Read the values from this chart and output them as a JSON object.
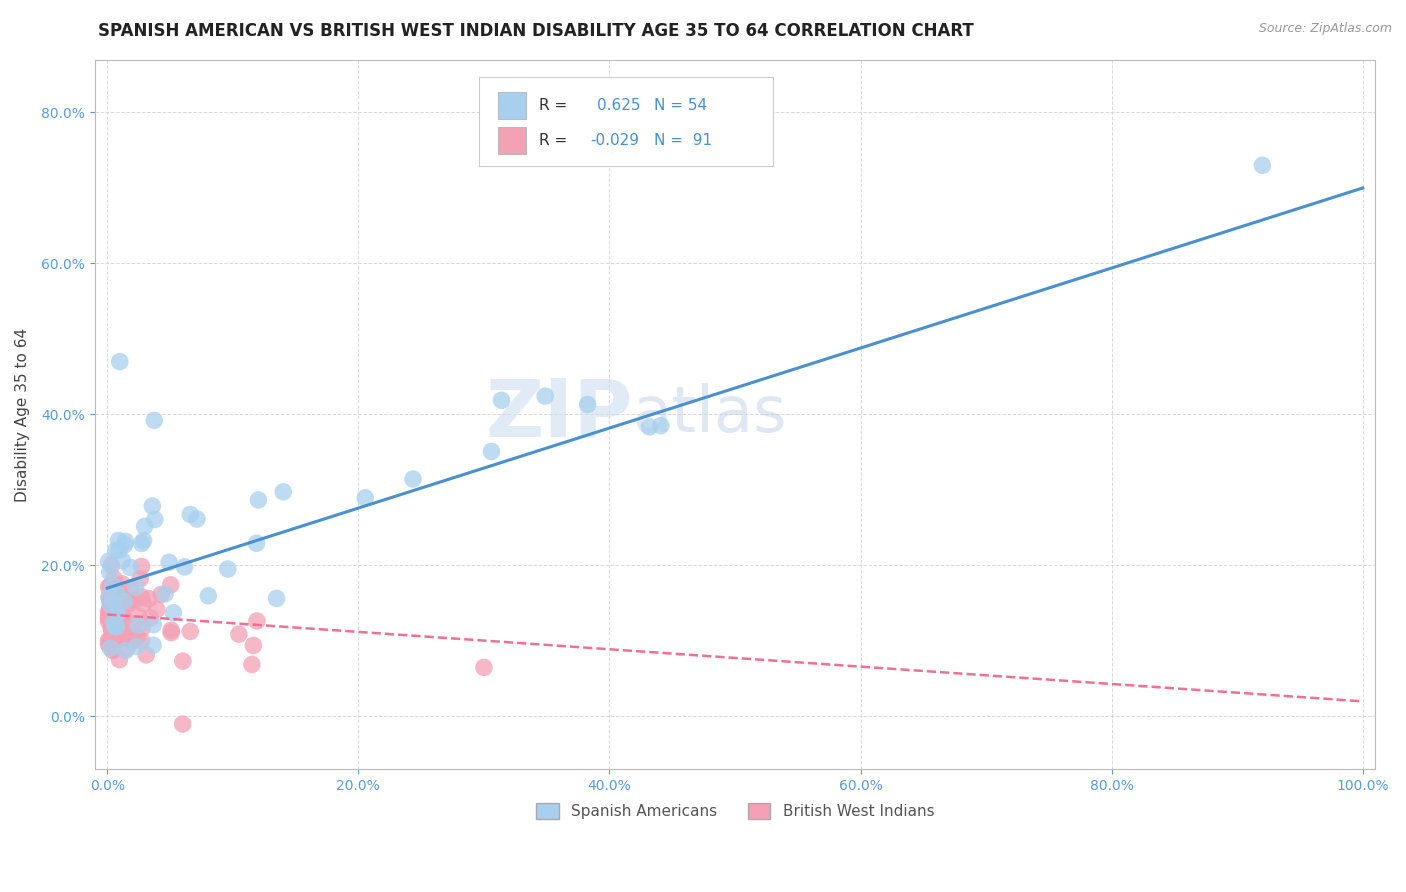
{
  "title": "SPANISH AMERICAN VS BRITISH WEST INDIAN DISABILITY AGE 35 TO 64 CORRELATION CHART",
  "source": "Source: ZipAtlas.com",
  "ylabel": "Disability Age 35 to 64",
  "xlim": [
    -0.01,
    1.01
  ],
  "ylim": [
    -0.07,
    0.87
  ],
  "xticks": [
    0.0,
    0.2,
    0.4,
    0.6,
    0.8,
    1.0
  ],
  "yticks": [
    0.0,
    0.2,
    0.4,
    0.6,
    0.8
  ],
  "background_color": "#ffffff",
  "watermark_zip": "ZIP",
  "watermark_atlas": "atlas",
  "blue_R": 0.625,
  "blue_N": 54,
  "pink_R": -0.029,
  "pink_N": 91,
  "blue_color": "#A8D0EE",
  "pink_color": "#F4A0B5",
  "blue_line_color": "#4A90D0",
  "pink_line_color": "#F07090",
  "blue_line_y0": 0.17,
  "blue_line_y1": 0.7,
  "pink_line_y0": 0.135,
  "pink_line_y1": 0.02,
  "legend_blue_label": "Spanish Americans",
  "legend_pink_label": "British West Indians",
  "title_fontsize": 12,
  "axis_label_fontsize": 11,
  "tick_fontsize": 10,
  "tick_color": "#5B9BD5",
  "grid_color": "#D0D0D0"
}
